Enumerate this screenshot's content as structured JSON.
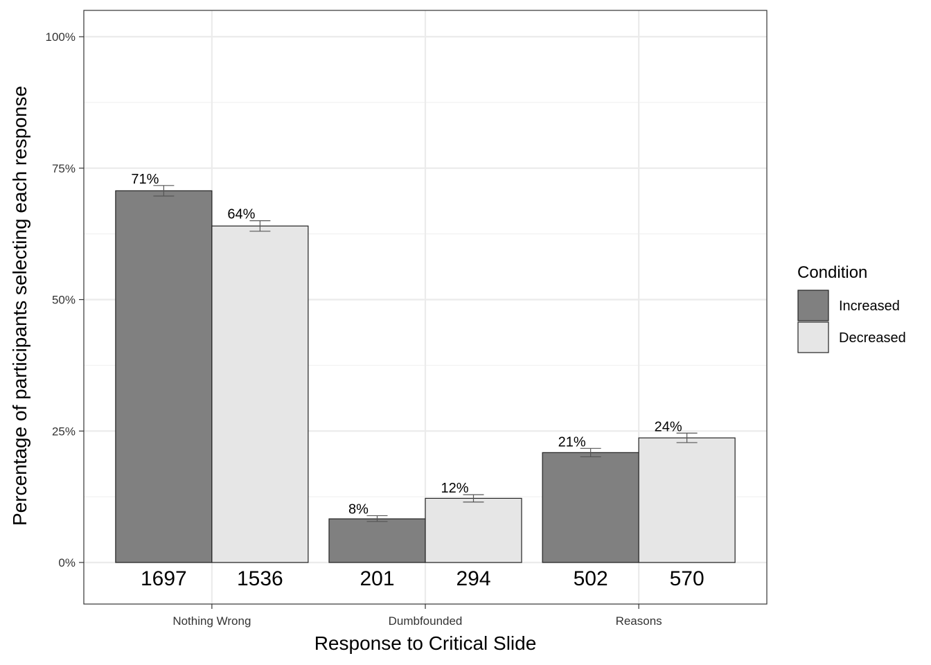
{
  "chart_data": {
    "type": "bar",
    "title": "",
    "xlabel": "Response to Critical Slide",
    "ylabel": "Percentage of participants selecting each response",
    "categories": [
      "Nothing Wrong",
      "Dumbfounded",
      "Reasons"
    ],
    "series": [
      {
        "name": "Increased",
        "color": "#808080",
        "values": [
          0.707,
          0.083,
          0.209
        ],
        "labels": [
          "71%",
          "8%",
          "21%"
        ],
        "counts": [
          "1697",
          "201",
          "502"
        ],
        "error_low": [
          0.697,
          0.078,
          0.201
        ],
        "error_high": [
          0.717,
          0.089,
          0.217
        ]
      },
      {
        "name": "Decreased",
        "color": "#e6e6e6",
        "values": [
          0.64,
          0.122,
          0.237
        ],
        "labels": [
          "64%",
          "12%",
          "24%"
        ],
        "counts": [
          "1536",
          "294",
          "570"
        ],
        "error_low": [
          0.63,
          0.115,
          0.228
        ],
        "error_high": [
          0.65,
          0.129,
          0.246
        ]
      }
    ],
    "y_ticks": [
      {
        "value": 0,
        "label": "0%"
      },
      {
        "value": 0.25,
        "label": "25%"
      },
      {
        "value": 0.5,
        "label": "50%"
      },
      {
        "value": 0.75,
        "label": "75%"
      },
      {
        "value": 1.0,
        "label": "100%"
      }
    ],
    "ylim": [
      -0.08,
      1.05
    ],
    "grid": true,
    "legend": {
      "title": "Condition",
      "placement": "right",
      "items": [
        "Increased",
        "Decreased"
      ]
    }
  }
}
